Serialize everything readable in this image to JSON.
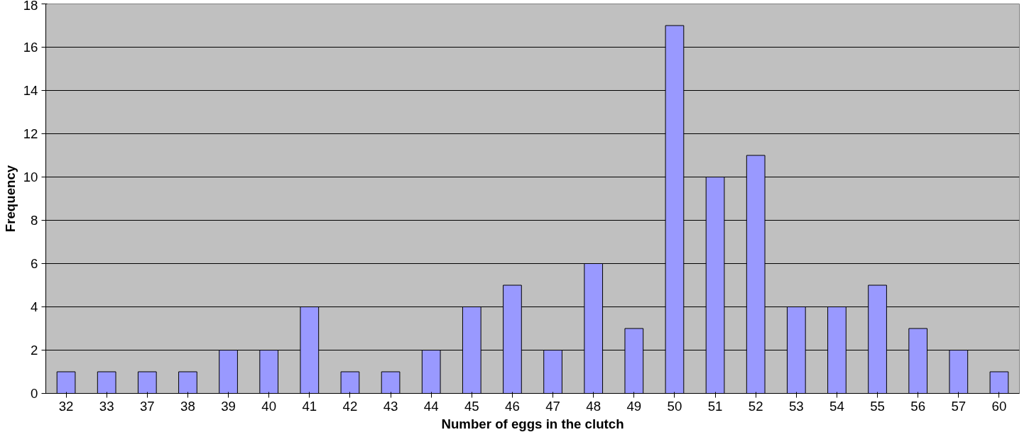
{
  "chart_data": {
    "type": "bar",
    "xlabel": "Number of eggs in the clutch",
    "ylabel": "Frequency",
    "categories": [
      "32",
      "33",
      "37",
      "38",
      "39",
      "40",
      "41",
      "42",
      "43",
      "44",
      "45",
      "46",
      "47",
      "48",
      "49",
      "50",
      "51",
      "52",
      "53",
      "54",
      "55",
      "56",
      "57",
      "60"
    ],
    "values": [
      1,
      1,
      1,
      1,
      2,
      2,
      4,
      1,
      1,
      2,
      4,
      5,
      2,
      6,
      3,
      17,
      10,
      11,
      4,
      4,
      5,
      3,
      2,
      1
    ],
    "color": "#9999ff",
    "ylim": [
      0,
      18
    ],
    "yticks": [
      0,
      2,
      4,
      6,
      8,
      10,
      12,
      14,
      16,
      18
    ],
    "grid": "y"
  }
}
